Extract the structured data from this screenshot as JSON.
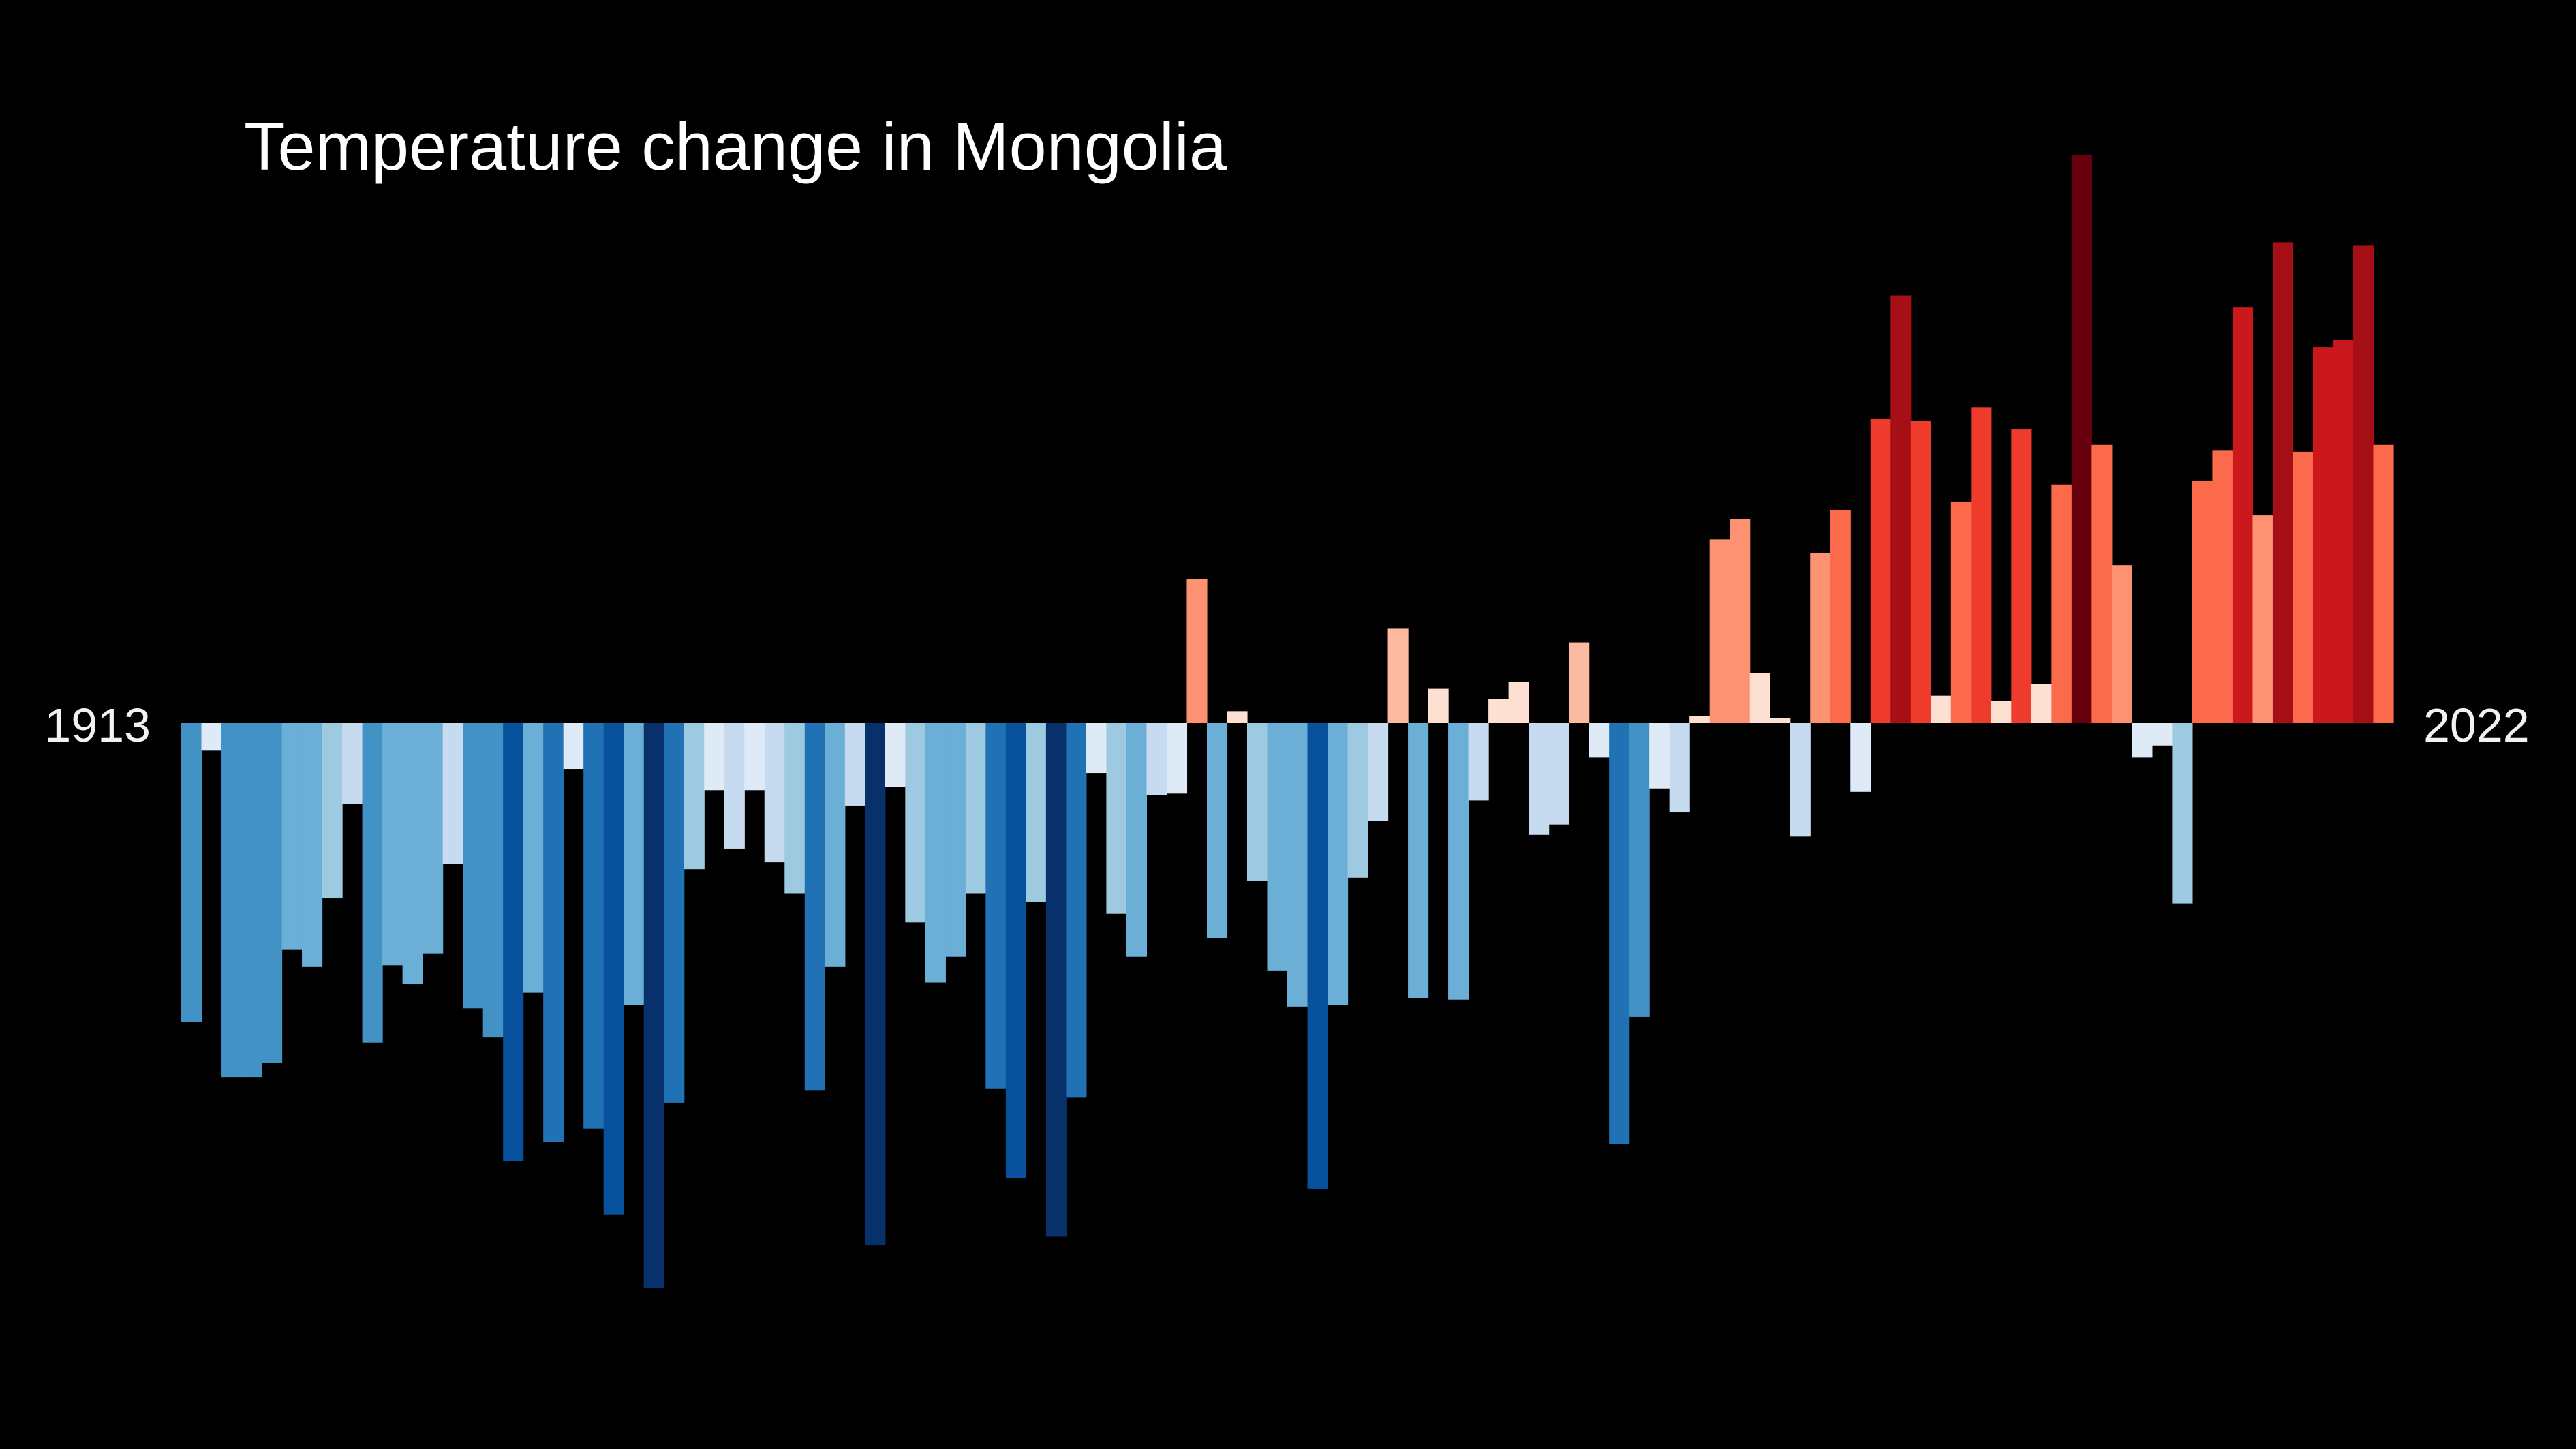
{
  "chart_data": {
    "type": "bar",
    "title": "Temperature change in Mongolia",
    "xlabel": "",
    "ylabel": "",
    "start_year": "1913",
    "end_year": "2022",
    "x": [
      1913,
      1914,
      1915,
      1916,
      1917,
      1918,
      1919,
      1920,
      1921,
      1922,
      1923,
      1924,
      1925,
      1926,
      1927,
      1928,
      1929,
      1930,
      1931,
      1932,
      1933,
      1934,
      1935,
      1936,
      1937,
      1938,
      1939,
      1940,
      1941,
      1942,
      1943,
      1944,
      1945,
      1946,
      1947,
      1948,
      1949,
      1950,
      1951,
      1952,
      1953,
      1954,
      1955,
      1956,
      1957,
      1958,
      1959,
      1960,
      1961,
      1962,
      1963,
      1964,
      1965,
      1966,
      1967,
      1968,
      1969,
      1970,
      1971,
      1972,
      1973,
      1974,
      1975,
      1976,
      1977,
      1978,
      1979,
      1980,
      1981,
      1982,
      1983,
      1984,
      1985,
      1986,
      1987,
      1988,
      1989,
      1990,
      1991,
      1992,
      1993,
      1994,
      1995,
      1996,
      1997,
      1998,
      1999,
      2000,
      2001,
      2002,
      2003,
      2004,
      2005,
      2006,
      2007,
      2008,
      2009,
      2010,
      2011,
      2012,
      2013,
      2014,
      2015,
      2016,
      2017,
      2018,
      2019,
      2020,
      2021,
      2022
    ],
    "values": [
      -1.74,
      -0.16,
      -2.06,
      -2.06,
      -1.98,
      -1.32,
      -1.42,
      -1.02,
      -0.47,
      -1.86,
      -1.41,
      -1.52,
      -1.34,
      -0.82,
      -1.66,
      -1.83,
      -2.55,
      -1.57,
      -2.44,
      -0.27,
      -2.36,
      -2.86,
      -1.64,
      -3.29,
      -2.21,
      -0.85,
      -0.39,
      -0.73,
      -0.39,
      -0.81,
      -0.99,
      -2.14,
      -1.42,
      -0.48,
      -3.04,
      -0.37,
      -1.16,
      -1.51,
      -1.36,
      -0.99,
      -2.13,
      -2.65,
      -1.04,
      -2.99,
      -2.18,
      -0.29,
      -1.11,
      -1.36,
      -0.42,
      -0.41,
      0.84,
      -1.25,
      0.07,
      -0.92,
      -1.44,
      -1.65,
      -2.71,
      -1.64,
      -0.9,
      -0.57,
      0.55,
      -1.6,
      0.2,
      -1.61,
      -0.45,
      0.14,
      0.24,
      -0.65,
      -0.59,
      0.47,
      -0.2,
      -2.45,
      -1.71,
      -0.38,
      -0.52,
      0.04,
      1.07,
      1.19,
      0.29,
      0.03,
      -0.66,
      0.99,
      1.24,
      -0.4,
      1.77,
      2.49,
      1.76,
      0.16,
      1.29,
      1.84,
      0.13,
      1.71,
      0.23,
      1.39,
      3.31,
      1.62,
      0.92,
      -0.2,
      -0.13,
      -1.05,
      1.41,
      1.59,
      2.42,
      1.21,
      2.8,
      1.58,
      2.19,
      2.23,
      2.78,
      1.62
    ],
    "color_scale": [
      "#08306b",
      "#08519c",
      "#2171b5",
      "#4292c6",
      "#6baed6",
      "#9ecae1",
      "#c6dbef",
      "#deebf7",
      "#fee0d2",
      "#fcbba1",
      "#fc9272",
      "#fb6a4a",
      "#ef3b2c",
      "#cb181d",
      "#a50f15",
      "#67000d"
    ]
  }
}
